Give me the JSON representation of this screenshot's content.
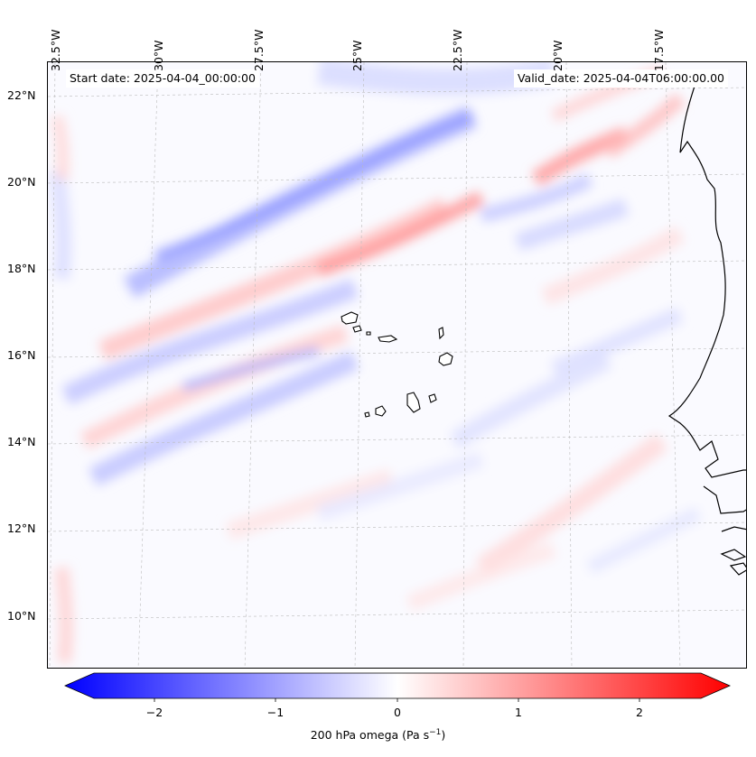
{
  "header": {
    "start_date": "Start date: 2025-04-04_00:00:00",
    "valid_date": "Valid_date: 2025-04-04T06:00:00.00"
  },
  "axes": {
    "lon_labels": [
      "32.5°W",
      "30°W",
      "27.5°W",
      "25°W",
      "22.5°W",
      "20°W",
      "17.5°W"
    ],
    "lat_labels": [
      "22°N",
      "20°N",
      "18°N",
      "16°N",
      "14°N",
      "12°N",
      "10°N"
    ]
  },
  "colorbar": {
    "ticks": [
      "−2",
      "−1",
      "0",
      "1",
      "2"
    ],
    "label": "200 hPa omega (Pa s",
    "label_sup": "−1",
    "label_close": ")",
    "range": [
      -2.5,
      2.5
    ],
    "colormap": "bwr",
    "color_low": "#0000ff",
    "color_mid": "#ffffff",
    "color_high": "#ff0000"
  },
  "chart_data": {
    "type": "heatmap",
    "variable": "200 hPa omega",
    "units": "Pa s-1",
    "vmin": -2.5,
    "vmax": 2.5,
    "lon_range": [
      -33,
      -16.5
    ],
    "lat_range": [
      9,
      22.5
    ]
  }
}
